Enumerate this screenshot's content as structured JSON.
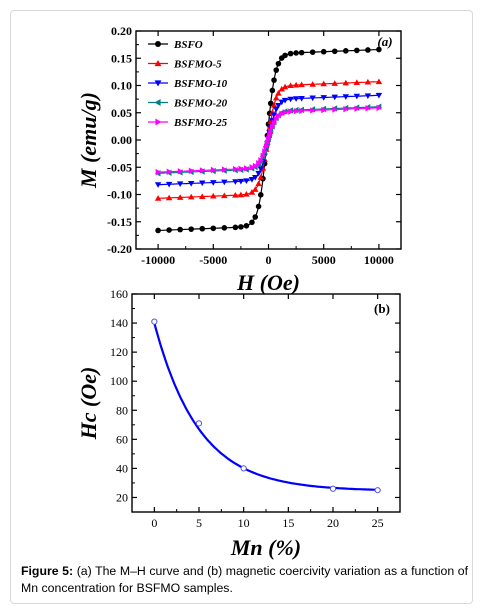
{
  "caption": {
    "label": "Figure 5:",
    "text": "(a) The M–H curve and (b) magnetic coercivity variation as a function of Mn concentration for BSFMO samples."
  },
  "chart_data": [
    {
      "type": "scatter",
      "panel_label": "(a)",
      "xlabel": "H (Oe)",
      "ylabel": "M (emu/g)",
      "xlim": [
        -12000,
        12000
      ],
      "ylim": [
        -0.2,
        0.2
      ],
      "xticks": [
        "-10000",
        "-5000",
        "0",
        "5000",
        "10000"
      ],
      "yticks": [
        "-0.20",
        "-0.15",
        "-0.10",
        "-0.05",
        "0.00",
        "0.05",
        "0.10",
        "0.15",
        "0.20"
      ],
      "legend_position": "top-left",
      "series": [
        {
          "name": "BSFO",
          "marker": "circle",
          "color": "#000000",
          "ms": 0.158,
          "hc": 140
        },
        {
          "name": "BSFMO-5",
          "marker": "triangle-up",
          "color": "#ff0000",
          "ms": 0.099,
          "hc": 70
        },
        {
          "name": "BSFMO-10",
          "marker": "triangle-down",
          "color": "#0000ff",
          "ms": 0.074,
          "hc": 40
        },
        {
          "name": "BSFMO-20",
          "marker": "triangle-left",
          "color": "#008080",
          "ms": 0.053,
          "hc": 27
        },
        {
          "name": "BSFMO-25",
          "marker": "triangle-right",
          "color": "#ff00ff",
          "ms": 0.051,
          "hc": 25
        }
      ],
      "x": [
        -10000,
        -9000,
        -8000,
        -7000,
        -6000,
        -5000,
        -4000,
        -3000,
        -2500,
        -2000,
        -1500,
        -1200,
        -900,
        -700,
        -500,
        -350,
        -200,
        -100,
        0,
        100,
        200,
        350,
        500,
        700,
        900,
        1200,
        1500,
        2000,
        2500,
        3000,
        4000,
        5000,
        6000,
        7000,
        8000,
        9000,
        10000
      ]
    },
    {
      "type": "scatter",
      "panel_label": "(b)",
      "xlabel": "Mn (%)",
      "ylabel": "Hc (Oe)",
      "xlim": [
        -2.5,
        27.5
      ],
      "ylim": [
        10,
        160
      ],
      "xticks": [
        "0",
        "5",
        "10",
        "15",
        "20",
        "25"
      ],
      "yticks": [
        "20",
        "40",
        "60",
        "80",
        "100",
        "120",
        "140",
        "160"
      ],
      "x": [
        0,
        5,
        10,
        20,
        25
      ],
      "values": [
        141,
        71,
        40,
        26,
        25
      ],
      "fit": {
        "color": "#0000ff",
        "y0": 24.5,
        "amplitude": 115.5,
        "tau": 5.0
      },
      "marker_color": "#5555dd"
    }
  ]
}
